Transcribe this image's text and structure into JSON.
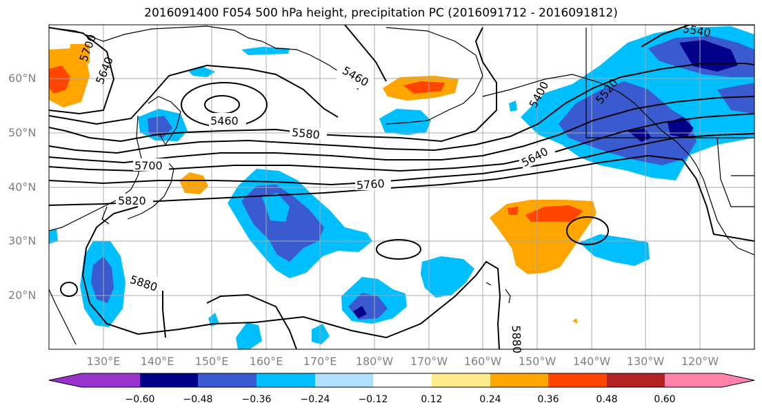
{
  "title": "2016091400 F054 500 hPa height, precipitation PC (2016091712 - 2016091812)",
  "lat_labels": [
    "60°N",
    "50°N",
    "40°N",
    "30°N",
    "20°N"
  ],
  "lon_labels": [
    "130°E",
    "140°E",
    "150°E",
    "160°E",
    "170°E",
    "180°W",
    "170°W",
    "160°W",
    "150°W",
    "140°W",
    "130°W",
    "120°W"
  ],
  "contour_labels": [
    "5700",
    "5640",
    "5460",
    "5460",
    "5580",
    "5400",
    "5520",
    "5640",
    "5700",
    "5760",
    "5820",
    "5880",
    "5880",
    "5540"
  ],
  "colorbar": {
    "tick_labels": [
      "−0.60",
      "−0.48",
      "−0.36",
      "−0.24",
      "−0.12",
      "0.12",
      "0.24",
      "0.36",
      "0.48",
      "0.60"
    ],
    "colors": [
      "#9933cc",
      "#00008b",
      "#3a5bcf",
      "#00bfff",
      "#b0e2ff",
      "#ffffff",
      "#ffec8b",
      "#ffa500",
      "#ff4500",
      "#b22222",
      "#ff82ab"
    ]
  }
}
